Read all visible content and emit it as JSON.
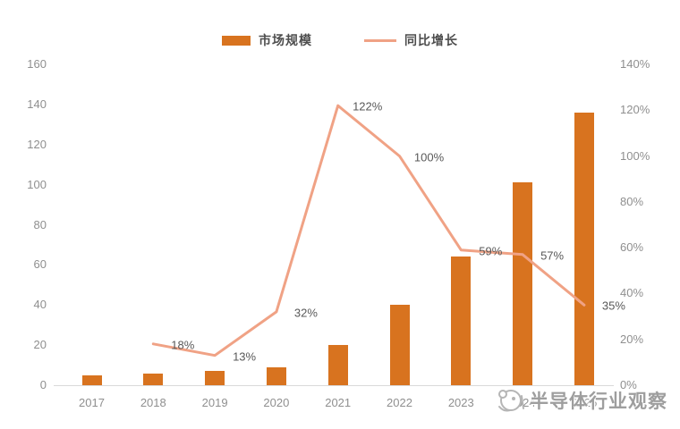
{
  "legend": {
    "bar_label": "市场规模",
    "line_label": "同比增长"
  },
  "watermark": {
    "text": "半导体行业观察"
  },
  "colors": {
    "bar": "#d8731f",
    "line": "#f0a285",
    "axis_text": "#8f8f8f",
    "data_label": "#595959",
    "baseline": "#d9d9d9",
    "legend_text": "#4d4d4d",
    "watermark": "#9e9e9e"
  },
  "chart_data": {
    "type": "bar+line",
    "title": "",
    "categories": [
      "2017",
      "2018",
      "2019",
      "2020",
      "2021",
      "2022",
      "2023",
      "2024",
      "2025"
    ],
    "series": [
      {
        "name": "市场规模",
        "type": "bar",
        "axis": "left",
        "values": [
          5,
          6,
          7,
          9,
          20,
          40,
          64,
          101,
          136
        ]
      },
      {
        "name": "同比增长",
        "type": "line",
        "axis": "right",
        "values": [
          null,
          18,
          13,
          32,
          122,
          100,
          59,
          57,
          35
        ],
        "point_labels": [
          "",
          "18%",
          "13%",
          "32%",
          "122%",
          "100%",
          "59%",
          "57%",
          "35%"
        ]
      }
    ],
    "left_axis": {
      "min": 0,
      "max": 160,
      "step": 20,
      "ticks": [
        "0",
        "20",
        "40",
        "60",
        "80",
        "100",
        "120",
        "140",
        "160"
      ]
    },
    "right_axis": {
      "min": 0,
      "max": 140,
      "step": 20,
      "ticks": [
        "0%",
        "20%",
        "40%",
        "60%",
        "80%",
        "100%",
        "120%",
        "140%"
      ]
    },
    "grid": false,
    "legend_position": "top"
  }
}
